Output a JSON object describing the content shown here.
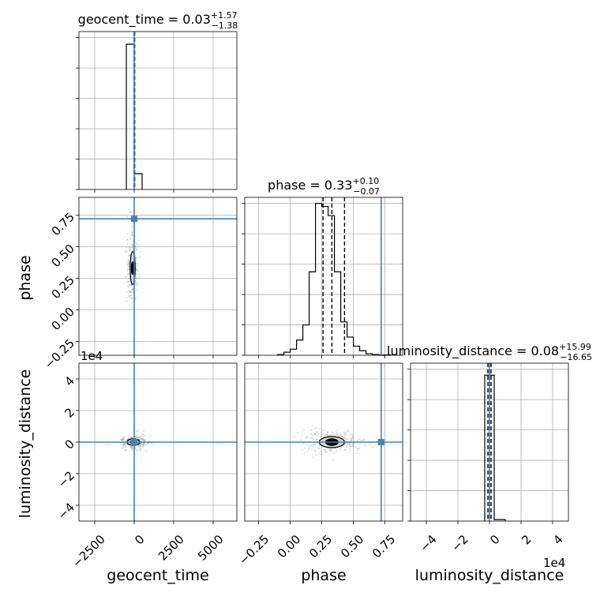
{
  "colors": {
    "truth": "#4682b4",
    "hist": "#000000",
    "grid": "#b0b0b0",
    "scatter": "#9a9a9a"
  },
  "chart_data": {
    "type": "corner",
    "parameters": [
      "geocent_time",
      "phase",
      "luminosity_distance"
    ],
    "axis_labels": [
      "geocent_time",
      "phase",
      "luminosity_distance"
    ],
    "offset_text": "1e4",
    "truths": {
      "geocent_time": 0,
      "phase": 0.72,
      "luminosity_distance": 0
    },
    "titles": [
      {
        "param": "geocent_time",
        "text": "geocent_time = 0.03",
        "upper": "+1.57",
        "lower": "−1.38"
      },
      {
        "param": "phase",
        "text": "phase = 0.33",
        "upper": "+0.10",
        "lower": "−0.07"
      },
      {
        "param": "luminosity_distance",
        "text": "luminosity_distance = 0.08",
        "upper": "+15.99",
        "lower": "−16.65"
      }
    ],
    "ranges": {
      "geocent_time": [
        -3500,
        6500
      ],
      "phase": [
        -0.36,
        0.89
      ],
      "luminosity_distance": [
        -5,
        5
      ]
    },
    "ticks": {
      "geocent_time": [
        -2500,
        0,
        2500,
        5000
      ],
      "phase": [
        -0.25,
        0.0,
        0.25,
        0.5,
        0.75
      ],
      "luminosity_distance": [
        -4,
        -2,
        0,
        2,
        4
      ]
    },
    "tick_labels": {
      "geocent_time": [
        "−2500",
        "0",
        "2500",
        "5000"
      ],
      "phase": [
        "−0.25",
        "0.00",
        "0.25",
        "0.50",
        "0.75"
      ],
      "luminosity_distance": [
        "−4",
        "−2",
        "0",
        "2",
        "4"
      ]
    },
    "histograms": {
      "geocent_time": {
        "edges": [
          -500,
          0,
          500
        ],
        "counts": [
          0.92,
          0.1
        ],
        "quantiles": [
          0,
          30,
          0
        ],
        "ymax": 1.0
      },
      "phase": {
        "edges": [
          -0.1,
          -0.05,
          0.0,
          0.05,
          0.1,
          0.15,
          0.2,
          0.25,
          0.3,
          0.35,
          0.4,
          0.45,
          0.5,
          0.55,
          0.6,
          0.65,
          0.7,
          0.75,
          0.8
        ],
        "counts": [
          0.005,
          0.02,
          0.04,
          0.1,
          0.2,
          0.55,
          1.0,
          0.98,
          0.92,
          0.55,
          0.22,
          0.12,
          0.06,
          0.03,
          0.01,
          0.005,
          0.002,
          0.002
        ],
        "quantiles": [
          0.26,
          0.33,
          0.43
        ],
        "ymax": 1.04
      },
      "luminosity_distance": {
        "edges": [
          -0.3,
          0,
          0.3,
          1.0
        ],
        "counts": [
          0.97,
          0.97,
          0.01
        ],
        "quantiles": [
          -0.1,
          0.0,
          0.1
        ],
        "ymax": 1.05
      }
    },
    "contours_2d": [
      {
        "x": "geocent_time",
        "y": "phase",
        "center": [
          -100,
          0.33
        ],
        "inner_rx": 80,
        "inner_ry": 0.05,
        "outer_rx": 160,
        "outer_ry": 0.13
      },
      {
        "x": "geocent_time",
        "y": "luminosity_distance",
        "center": [
          -50,
          0.0
        ],
        "inner_rx": 200,
        "inner_ry": 0.1,
        "outer_rx": 400,
        "outer_ry": 0.2
      },
      {
        "x": "phase",
        "y": "luminosity_distance",
        "center": [
          0.33,
          0.0
        ],
        "inner_rx": 0.05,
        "inner_ry": 0.22,
        "outer_rx": 0.1,
        "outer_ry": 0.35
      }
    ]
  }
}
